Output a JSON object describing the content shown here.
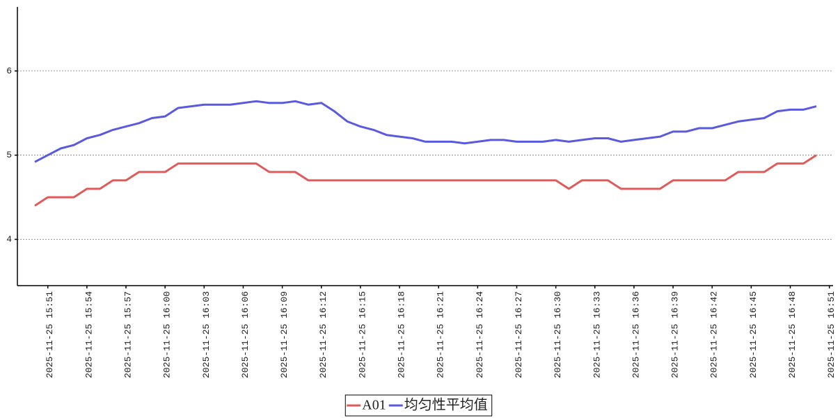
{
  "chart_data": {
    "type": "line",
    "x": [
      "2025-11-25 15:50",
      "2025-11-25 15:51",
      "2025-11-25 15:52",
      "2025-11-25 15:53",
      "2025-11-25 15:54",
      "2025-11-25 15:55",
      "2025-11-25 15:56",
      "2025-11-25 15:57",
      "2025-11-25 15:58",
      "2025-11-25 15:59",
      "2025-11-25 16:00",
      "2025-11-25 16:01",
      "2025-11-25 16:02",
      "2025-11-25 16:03",
      "2025-11-25 16:04",
      "2025-11-25 16:05",
      "2025-11-25 16:06",
      "2025-11-25 16:07",
      "2025-11-25 16:08",
      "2025-11-25 16:09",
      "2025-11-25 16:10",
      "2025-11-25 16:11",
      "2025-11-25 16:12",
      "2025-11-25 16:13",
      "2025-11-25 16:14",
      "2025-11-25 16:15",
      "2025-11-25 16:16",
      "2025-11-25 16:17",
      "2025-11-25 16:18",
      "2025-11-25 16:19",
      "2025-11-25 16:20",
      "2025-11-25 16:21",
      "2025-11-25 16:22",
      "2025-11-25 16:23",
      "2025-11-25 16:24",
      "2025-11-25 16:25",
      "2025-11-25 16:26",
      "2025-11-25 16:27",
      "2025-11-25 16:28",
      "2025-11-25 16:29",
      "2025-11-25 16:30",
      "2025-11-25 16:31",
      "2025-11-25 16:32",
      "2025-11-25 16:33",
      "2025-11-25 16:34",
      "2025-11-25 16:35",
      "2025-11-25 16:36",
      "2025-11-25 16:37",
      "2025-11-25 16:38",
      "2025-11-25 16:39",
      "2025-11-25 16:40",
      "2025-11-25 16:41",
      "2025-11-25 16:42",
      "2025-11-25 16:43",
      "2025-11-25 16:44",
      "2025-11-25 16:45",
      "2025-11-25 16:46",
      "2025-11-25 16:47",
      "2025-11-25 16:48",
      "2025-11-25 16:49",
      "2025-11-25 16:50"
    ],
    "series": [
      {
        "name": "A01",
        "color": "#e05a5a",
        "values": [
          4.4,
          4.5,
          4.5,
          4.5,
          4.6,
          4.6,
          4.7,
          4.7,
          4.8,
          4.8,
          4.8,
          4.9,
          4.9,
          4.9,
          4.9,
          4.9,
          4.9,
          4.9,
          4.8,
          4.8,
          4.8,
          4.7,
          4.7,
          4.7,
          4.7,
          4.7,
          4.7,
          4.7,
          4.7,
          4.7,
          4.7,
          4.7,
          4.7,
          4.7,
          4.7,
          4.7,
          4.7,
          4.7,
          4.7,
          4.7,
          4.7,
          4.6,
          4.7,
          4.7,
          4.7,
          4.6,
          4.6,
          4.6,
          4.6,
          4.7,
          4.7,
          4.7,
          4.7,
          4.7,
          4.8,
          4.8,
          4.8,
          4.9,
          4.9,
          4.9,
          5.0
        ]
      },
      {
        "name": "均匀性平均值",
        "color": "#5a5ae0",
        "values": [
          4.92,
          5.0,
          5.08,
          5.12,
          5.2,
          5.24,
          5.3,
          5.34,
          5.38,
          5.44,
          5.46,
          5.56,
          5.58,
          5.6,
          5.6,
          5.6,
          5.62,
          5.64,
          5.62,
          5.62,
          5.64,
          5.6,
          5.62,
          5.52,
          5.4,
          5.34,
          5.3,
          5.24,
          5.22,
          5.2,
          5.16,
          5.16,
          5.16,
          5.14,
          5.16,
          5.18,
          5.18,
          5.16,
          5.16,
          5.16,
          5.18,
          5.16,
          5.18,
          5.2,
          5.2,
          5.16,
          5.18,
          5.2,
          5.22,
          5.28,
          5.28,
          5.32,
          5.32,
          5.36,
          5.4,
          5.42,
          5.44,
          5.52,
          5.54,
          5.54,
          5.58
        ]
      }
    ],
    "ylim": [
      3.45,
      6.76
    ],
    "yticks": [
      4,
      5,
      6
    ],
    "grid": true,
    "xticks": [
      "2025-11-25 15:51",
      "2025-11-25 15:54",
      "2025-11-25 15:57",
      "2025-11-25 16:00",
      "2025-11-25 16:03",
      "2025-11-25 16:06",
      "2025-11-25 16:09",
      "2025-11-25 16:12",
      "2025-11-25 16:15",
      "2025-11-25 16:18",
      "2025-11-25 16:21",
      "2025-11-25 16:24",
      "2025-11-25 16:27",
      "2025-11-25 16:30",
      "2025-11-25 16:33",
      "2025-11-25 16:36",
      "2025-11-25 16:39",
      "2025-11-25 16:42",
      "2025-11-25 16:45",
      "2025-11-25 16:48",
      "2025-11-25 16:51"
    ],
    "legend": "bottom"
  }
}
